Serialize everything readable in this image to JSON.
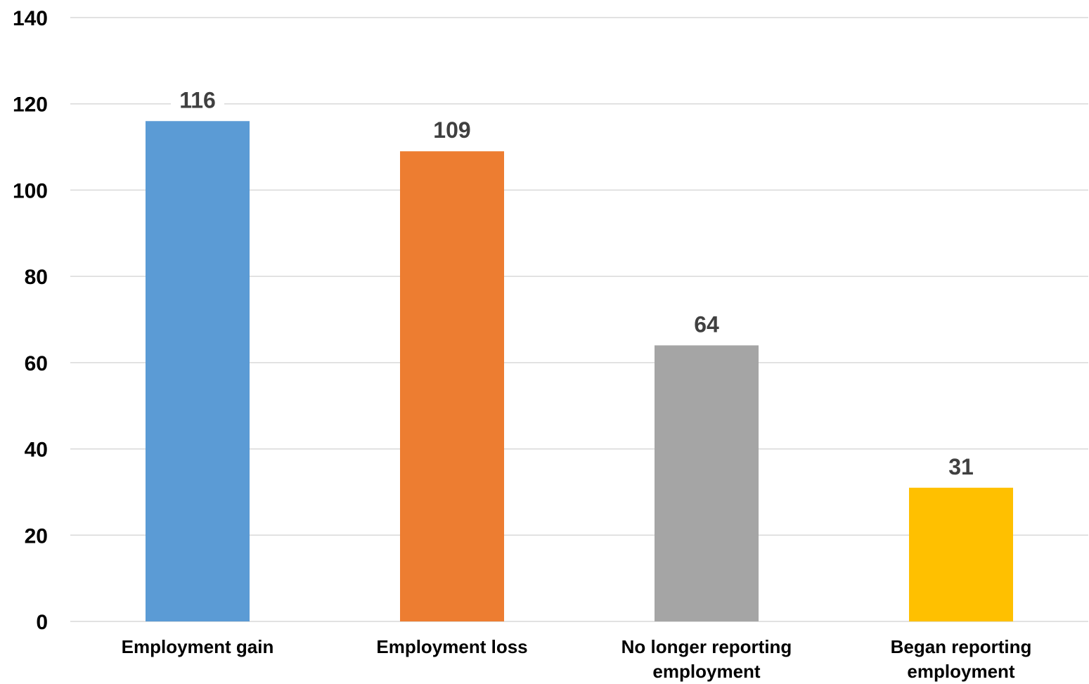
{
  "chart_data": {
    "type": "bar",
    "categories": [
      [
        "Employment gain"
      ],
      [
        "Employment loss"
      ],
      [
        "No longer reporting",
        "employment"
      ],
      [
        "Began reporting",
        "employment"
      ]
    ],
    "values": [
      116,
      109,
      64,
      31
    ],
    "colors": [
      "#5b9bd5",
      "#ed7d31",
      "#a5a5a5",
      "#ffc000"
    ],
    "ylim": [
      0,
      140
    ],
    "yticks": [
      0,
      20,
      40,
      60,
      80,
      100,
      120,
      140
    ],
    "grid": true,
    "legend": "none",
    "data_labels": true
  }
}
